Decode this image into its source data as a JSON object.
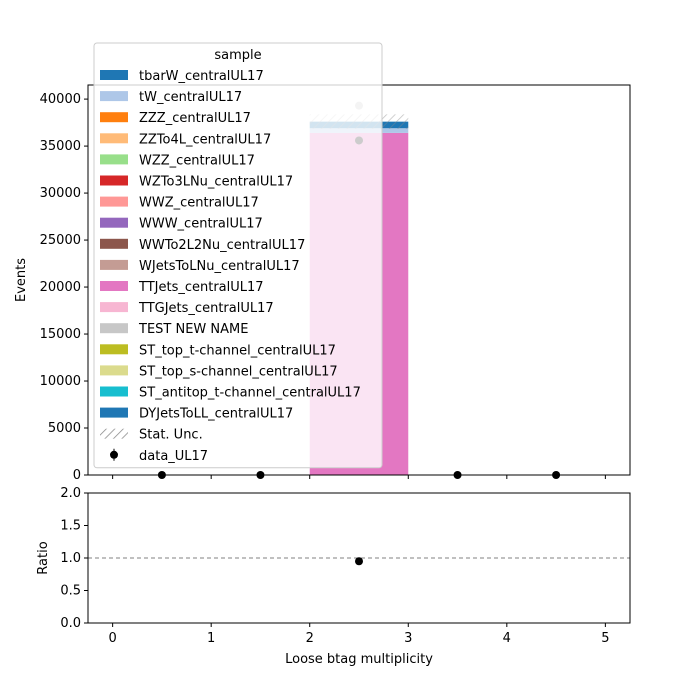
{
  "chart_data": [
    {
      "type": "bar",
      "stacked": true,
      "xlabel": "",
      "ylabel": "Events",
      "xlim": [
        -0.25,
        5.25
      ],
      "ylim": [
        0,
        41500
      ],
      "yticks": [
        0,
        5000,
        10000,
        15000,
        20000,
        25000,
        30000,
        35000,
        40000
      ],
      "xticks": [
        0,
        1,
        2,
        3,
        4,
        5
      ],
      "bins": [
        [
          0,
          1
        ],
        [
          1,
          2
        ],
        [
          2,
          3
        ],
        [
          3,
          4
        ],
        [
          4,
          5
        ]
      ],
      "series": [
        {
          "name": "tbarW_centralUL17",
          "color": "#1f77b4",
          "values": [
            0,
            0,
            700,
            0,
            0
          ]
        },
        {
          "name": "tW_centralUL17",
          "color": "#aec7e8",
          "values": [
            0,
            0,
            500,
            0,
            0
          ]
        },
        {
          "name": "ZZZ_centralUL17",
          "color": "#ff7f0e",
          "values": [
            0,
            0,
            0,
            0,
            0
          ]
        },
        {
          "name": "ZZTo4L_centralUL17",
          "color": "#ffbb78",
          "values": [
            0,
            0,
            0,
            0,
            0
          ]
        },
        {
          "name": "WZZ_centralUL17",
          "color": "#98df8a",
          "values": [
            0,
            0,
            0,
            0,
            0
          ]
        },
        {
          "name": "WZTo3LNu_centralUL17",
          "color": "#d62728",
          "values": [
            0,
            0,
            0,
            0,
            0
          ]
        },
        {
          "name": "WWZ_centralUL17",
          "color": "#ff9896",
          "values": [
            0,
            0,
            0,
            0,
            0
          ]
        },
        {
          "name": "WWW_centralUL17",
          "color": "#9467bd",
          "values": [
            0,
            0,
            0,
            0,
            0
          ]
        },
        {
          "name": "WWTo2L2Nu_centralUL17",
          "color": "#8c564b",
          "values": [
            0,
            0,
            0,
            0,
            0
          ]
        },
        {
          "name": "WJetsToLNu_centralUL17",
          "color": "#c49c94",
          "values": [
            0,
            0,
            0,
            0,
            0
          ]
        },
        {
          "name": "TTJets_centralUL17",
          "color": "#e377c2",
          "values": [
            0,
            0,
            36400,
            0,
            0
          ]
        },
        {
          "name": "TTGJets_centralUL17",
          "color": "#f7b6d2",
          "values": [
            0,
            0,
            0,
            0,
            0
          ]
        },
        {
          "name": "TEST NEW NAME",
          "color": "#c7c7c7",
          "values": [
            0,
            0,
            0,
            0,
            0
          ]
        },
        {
          "name": "ST_top_t-channel_centralUL17",
          "color": "#bcbd22",
          "values": [
            0,
            0,
            0,
            0,
            0
          ]
        },
        {
          "name": "ST_top_s-channel_centralUL17",
          "color": "#dbdb8d",
          "values": [
            0,
            0,
            0,
            0,
            0
          ]
        },
        {
          "name": "ST_antitop_t-channel_centralUL17",
          "color": "#17becf",
          "values": [
            0,
            0,
            0,
            0,
            0
          ]
        },
        {
          "name": "DYJetsToLL_centralUL17",
          "color": "#1f77b4",
          "values": [
            0,
            0,
            0,
            0,
            0
          ]
        }
      ],
      "stat_unc_label": "Stat. Unc.",
      "data_series": {
        "name": "data_UL17",
        "x": [
          0.5,
          1.5,
          2.5,
          3.5,
          4.5
        ],
        "y": [
          0,
          0,
          35600,
          0,
          0
        ]
      },
      "extra_marker": {
        "x": 2.5,
        "y": 39300,
        "color": "#c7c7c7"
      },
      "legend": {
        "title": "sample",
        "placement": "upper-left"
      }
    },
    {
      "type": "scatter",
      "xlabel": "Loose btag multiplicity",
      "ylabel": "Ratio",
      "xlim": [
        -0.25,
        5.25
      ],
      "ylim": [
        0,
        2.0
      ],
      "yticks": [
        0.0,
        0.5,
        1.0,
        1.5,
        2.0
      ],
      "ytick_labels": [
        "0.0",
        "0.5",
        "1.0",
        "1.5",
        "2.0"
      ],
      "xticks": [
        0,
        1,
        2,
        3,
        4,
        5
      ],
      "reference_line": 1.0,
      "points": [
        {
          "x": 2.5,
          "y": 0.95
        }
      ]
    }
  ]
}
